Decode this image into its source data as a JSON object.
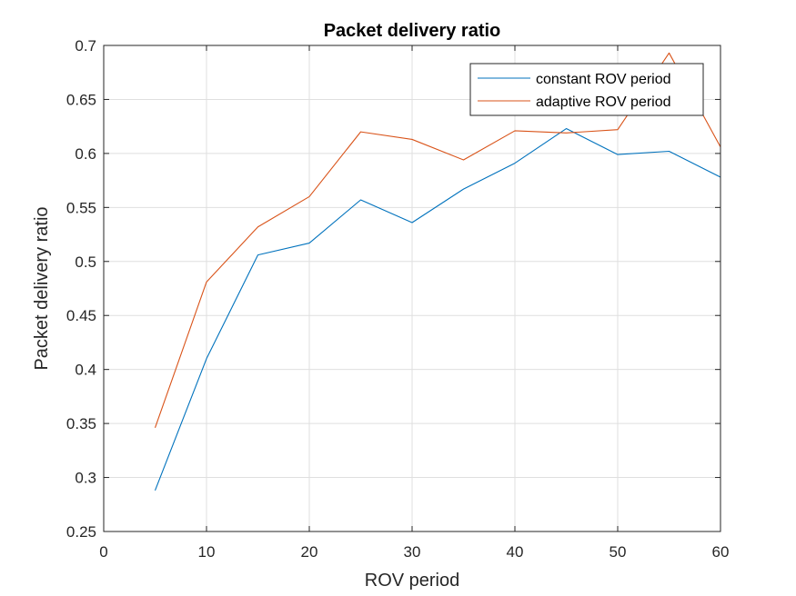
{
  "chart_data": {
    "type": "line",
    "title": "Packet delivery ratio",
    "xlabel": "ROV period",
    "ylabel": "Packet delivery ratio",
    "xlim": [
      0,
      60
    ],
    "ylim": [
      0.25,
      0.7
    ],
    "xticks": [
      0,
      10,
      20,
      30,
      40,
      50,
      60
    ],
    "xtick_labels": [
      "0",
      "10",
      "20",
      "30",
      "40",
      "50",
      "60"
    ],
    "yticks": [
      0.25,
      0.3,
      0.35,
      0.4,
      0.45,
      0.5,
      0.55,
      0.6,
      0.65,
      0.7
    ],
    "ytick_labels": [
      "0.25",
      "0.3",
      "0.35",
      "0.4",
      "0.45",
      "0.5",
      "0.55",
      "0.6",
      "0.65",
      "0.7"
    ],
    "grid": true,
    "legend_position": "top-right",
    "x": [
      5,
      10,
      15,
      20,
      25,
      30,
      35,
      40,
      45,
      50,
      55,
      60
    ],
    "series": [
      {
        "name": "constant ROV period",
        "color": "#0072BD",
        "values": [
          0.288,
          0.41,
          0.506,
          0.517,
          0.557,
          0.536,
          0.567,
          0.591,
          0.623,
          0.599,
          0.602,
          0.578
        ]
      },
      {
        "name": "adaptive ROV period",
        "color": "#D95319",
        "values": [
          0.346,
          0.481,
          0.532,
          0.56,
          0.62,
          0.613,
          0.594,
          0.621,
          0.619,
          0.622,
          0.693,
          0.606
        ]
      }
    ]
  }
}
